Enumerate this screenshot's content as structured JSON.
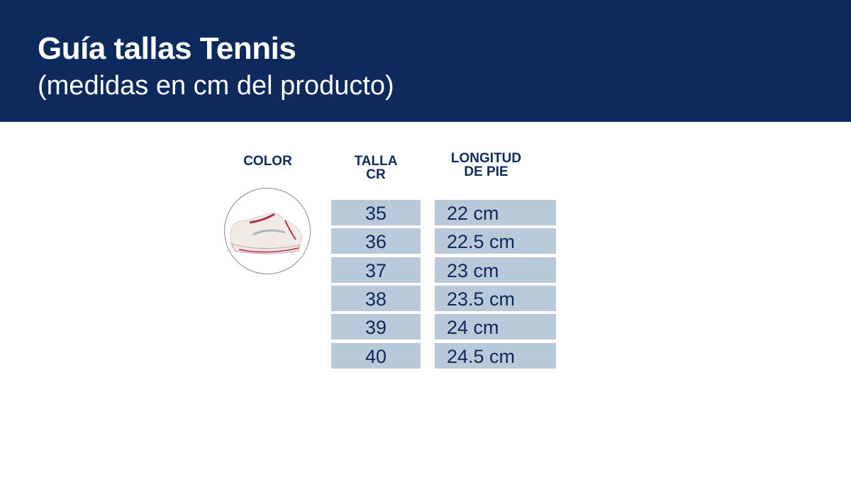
{
  "header": {
    "title": "Guía tallas Tennis",
    "subtitle": "(medidas en cm del producto)"
  },
  "columns": {
    "color": "COLOR",
    "talla": [
      "TALLA",
      "CR"
    ],
    "longitud": [
      "LONGITUD",
      "DE PIE"
    ]
  },
  "product_image": "sneaker-photo",
  "colors": {
    "header_bg": "#0e2a5c",
    "cell_bg": "#b9c9d9",
    "text": "#0e2a5c"
  },
  "rows": [
    {
      "talla": "35",
      "longitud": "22 cm"
    },
    {
      "talla": "36",
      "longitud": "22.5 cm"
    },
    {
      "talla": "37",
      "longitud": "23 cm"
    },
    {
      "talla": "38",
      "longitud": "23.5 cm"
    },
    {
      "talla": "39",
      "longitud": "24 cm"
    },
    {
      "talla": "40",
      "longitud": "24.5 cm"
    }
  ]
}
